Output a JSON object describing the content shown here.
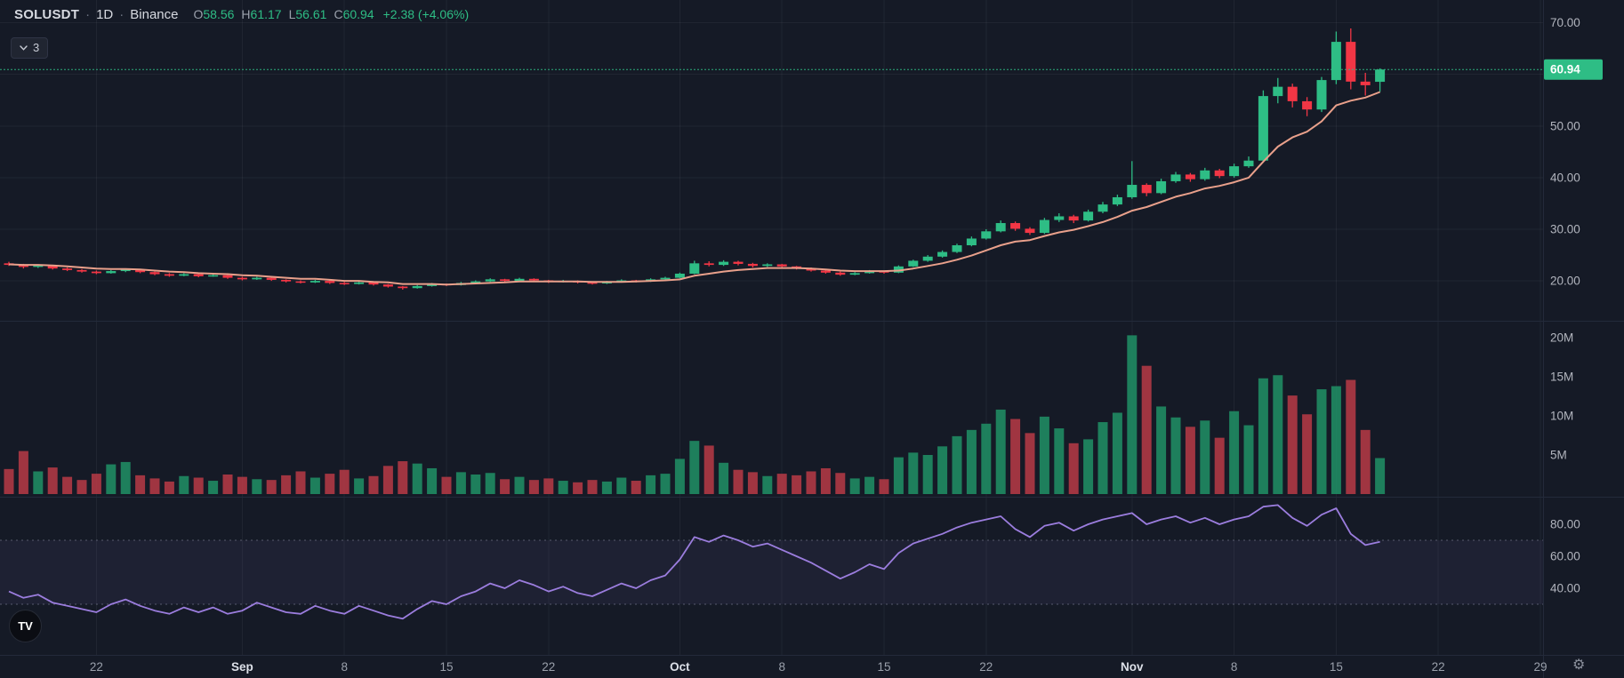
{
  "header": {
    "symbol": "SOLUSDT",
    "sep1": "·",
    "interval": "1D",
    "sep2": "·",
    "exchange": "Binance",
    "ohlc": {
      "o_label": "O",
      "o": "58.56",
      "h_label": "H",
      "h": "61.17",
      "l_label": "L",
      "l": "56.61",
      "c_label": "C",
      "c": "60.94",
      "change": "+2.38 (+4.06%)"
    },
    "indicator_badge": {
      "count": "3"
    }
  },
  "footer": {
    "logo_text": "TV",
    "gear_icon": "⚙"
  },
  "colors": {
    "bg": "#151a26",
    "up": "#2ebd85",
    "down": "#f23645",
    "vol_up": "#209266",
    "vol_down": "#b83b46",
    "ma": "#e9a08b",
    "rsi_line": "#9b7dde",
    "rsi_band": "rgba(155,125,222,0.07)",
    "band_line": "rgba(139,144,162,0.55)",
    "grid": "rgba(255,255,255,0.05)",
    "separator": "#232a3a",
    "axis_text": "#b2b5be",
    "text1": "#d6d9e0",
    "muted": "#9aa0ab",
    "badge_bg": "#2ebd85",
    "badge_text": "#ffffff",
    "price_line": "#2ebd85",
    "tick_minor": "#9aa0ab",
    "tick_major": "#dce0e8"
  },
  "price_axis": {
    "labels": [
      {
        "text": "70.00",
        "price": 70
      },
      {
        "text": "50.00",
        "price": 50
      },
      {
        "text": "40.00",
        "price": 40
      },
      {
        "text": "30.00",
        "price": 30
      },
      {
        "text": "20.00",
        "price": 20
      }
    ],
    "grid_prices": [
      20,
      30,
      40,
      50,
      60,
      70
    ],
    "last": {
      "text": "60.94",
      "price": 60.94
    }
  },
  "volume_axis": {
    "labels": [
      {
        "text": "20M",
        "value": 20
      },
      {
        "text": "15M",
        "value": 15
      },
      {
        "text": "10M",
        "value": 10
      },
      {
        "text": "5M",
        "value": 5
      }
    ]
  },
  "rsi_axis": {
    "labels": [
      {
        "text": "80.00",
        "value": 80
      },
      {
        "text": "60.00",
        "value": 60
      },
      {
        "text": "40.00",
        "value": 40
      }
    ],
    "bands": [
      70,
      30
    ]
  },
  "time_axis": {
    "ticks": [
      {
        "text": "22",
        "i": 6,
        "major": false
      },
      {
        "text": "Sep",
        "i": 16,
        "major": true
      },
      {
        "text": "8",
        "i": 23,
        "major": false
      },
      {
        "text": "15",
        "i": 30,
        "major": false
      },
      {
        "text": "22",
        "i": 37,
        "major": false
      },
      {
        "text": "Oct",
        "i": 46,
        "major": true
      },
      {
        "text": "8",
        "i": 53,
        "major": false
      },
      {
        "text": "15",
        "i": 60,
        "major": false
      },
      {
        "text": "22",
        "i": 67,
        "major": false
      },
      {
        "text": "Nov",
        "i": 77,
        "major": true
      },
      {
        "text": "8",
        "i": 84,
        "major": false
      },
      {
        "text": "15",
        "i": 91,
        "major": false
      },
      {
        "text": "22",
        "i": 98,
        "major": false
      },
      {
        "text": "29",
        "i": 105,
        "major": false
      }
    ]
  },
  "chart_data": {
    "type": "candlestick",
    "symbol": "SOLUSDT",
    "interval": "1D",
    "exchange": "Binance",
    "panes": [
      "price+ma",
      "volume",
      "rsi"
    ],
    "last_price": 60.94,
    "price_ylim": [
      12.3,
      74.4
    ],
    "volume_ylim_millions": [
      0,
      22
    ],
    "rsi_ylim": [
      0,
      97
    ],
    "rsi_bands": [
      70,
      30
    ],
    "open": [
      23.4,
      23.1,
      22.7,
      23.0,
      22.4,
      22.1,
      21.8,
      21.5,
      21.9,
      22.2,
      21.7,
      21.3,
      21.0,
      21.3,
      20.9,
      21.1,
      20.6,
      20.3,
      20.6,
      20.2,
      19.9,
      19.7,
      20.0,
      19.6,
      19.4,
      19.7,
      19.3,
      18.9,
      18.6,
      19.0,
      19.4,
      19.2,
      19.6,
      19.9,
      20.3,
      20.0,
      20.4,
      20.1,
      19.8,
      20.0,
      19.7,
      19.5,
      19.8,
      20.1,
      19.9,
      20.3,
      20.6,
      21.4,
      23.4,
      23.1,
      23.7,
      23.3,
      22.9,
      23.2,
      22.8,
      22.4,
      22.0,
      21.6,
      21.2,
      21.5,
      21.9,
      21.6,
      22.8,
      23.9,
      24.7,
      25.6,
      26.9,
      28.2,
      29.6,
      31.2,
      30.1,
      29.3,
      31.8,
      32.5,
      31.7,
      33.4,
      34.8,
      36.2,
      38.6,
      37.0,
      39.3,
      40.6,
      39.7,
      41.4,
      40.3,
      42.2,
      43.3,
      55.8,
      57.6,
      54.8,
      53.2,
      58.9,
      66.3,
      58.6,
      58.56
    ],
    "high": [
      23.7,
      23.3,
      23.2,
      23.1,
      22.6,
      22.3,
      22.0,
      22.1,
      22.4,
      22.3,
      21.8,
      21.5,
      21.5,
      21.4,
      21.3,
      21.2,
      20.8,
      20.8,
      20.7,
      20.3,
      20.1,
      20.2,
      20.1,
      19.8,
      19.9,
      19.8,
      19.4,
      19.0,
      19.2,
      19.6,
      19.5,
      19.8,
      20.1,
      20.5,
      20.4,
      20.6,
      20.5,
      20.2,
      20.2,
      20.1,
      19.8,
      20.0,
      20.3,
      20.2,
      20.5,
      20.8,
      21.6,
      23.9,
      23.8,
      24.0,
      23.9,
      23.5,
      23.4,
      23.3,
      22.9,
      22.6,
      22.1,
      21.8,
      21.7,
      22.1,
      22.0,
      23.0,
      24.1,
      25.0,
      25.9,
      27.2,
      28.6,
      30.0,
      31.7,
      31.5,
      30.4,
      32.2,
      33.1,
      32.8,
      33.8,
      35.3,
      36.7,
      43.2,
      38.9,
      39.8,
      41.1,
      40.9,
      41.9,
      41.7,
      42.7,
      44.1,
      56.9,
      59.3,
      58.2,
      55.6,
      59.5,
      68.3,
      68.9,
      60.3,
      61.17
    ],
    "low": [
      22.9,
      22.4,
      22.5,
      22.2,
      21.9,
      21.6,
      21.3,
      21.4,
      21.7,
      21.5,
      21.1,
      20.8,
      20.9,
      20.7,
      20.8,
      20.4,
      20.1,
      20.2,
      20.0,
      19.7,
      19.5,
      19.6,
      19.4,
      19.2,
      19.3,
      19.1,
      18.7,
      18.3,
      18.5,
      18.9,
      19.0,
      19.1,
      19.5,
      19.8,
      19.8,
      19.9,
      19.9,
      19.6,
      19.7,
      19.5,
      19.3,
      19.4,
      19.7,
      19.7,
      19.8,
      20.2,
      20.5,
      21.3,
      22.8,
      22.9,
      23.0,
      22.6,
      22.7,
      22.5,
      22.2,
      21.8,
      21.4,
      21.0,
      21.1,
      21.4,
      21.4,
      21.5,
      22.7,
      23.7,
      24.5,
      25.4,
      26.7,
      28.0,
      29.4,
      29.7,
      28.9,
      29.1,
      31.4,
      31.2,
      31.5,
      33.1,
      34.5,
      35.9,
      36.4,
      36.8,
      39.0,
      39.2,
      39.4,
      39.9,
      40.0,
      41.9,
      42.9,
      54.4,
      53.6,
      51.9,
      52.7,
      58.1,
      57.1,
      55.9,
      56.61
    ],
    "close": [
      23.1,
      22.7,
      23.0,
      22.4,
      22.1,
      21.8,
      21.5,
      21.9,
      22.2,
      21.7,
      21.3,
      21.0,
      21.3,
      20.9,
      21.1,
      20.6,
      20.3,
      20.6,
      20.2,
      19.9,
      19.7,
      20.0,
      19.6,
      19.4,
      19.7,
      19.3,
      18.9,
      18.6,
      19.0,
      19.4,
      19.2,
      19.6,
      19.9,
      20.3,
      20.0,
      20.4,
      20.1,
      19.8,
      20.0,
      19.7,
      19.5,
      19.8,
      20.1,
      19.9,
      20.3,
      20.6,
      21.4,
      23.4,
      23.1,
      23.7,
      23.3,
      22.9,
      23.2,
      22.8,
      22.4,
      22.0,
      21.6,
      21.2,
      21.5,
      21.9,
      21.6,
      22.8,
      23.9,
      24.7,
      25.6,
      26.9,
      28.2,
      29.6,
      31.2,
      30.1,
      29.3,
      31.8,
      32.5,
      31.7,
      33.4,
      34.8,
      36.2,
      38.6,
      37.0,
      39.3,
      40.6,
      39.7,
      41.4,
      40.3,
      42.2,
      43.3,
      55.8,
      57.6,
      54.8,
      53.2,
      58.9,
      66.3,
      58.6,
      57.9,
      60.94
    ],
    "volume_millions": [
      3.2,
      5.5,
      2.9,
      3.4,
      2.2,
      1.8,
      2.6,
      3.8,
      4.1,
      2.4,
      2.0,
      1.6,
      2.3,
      2.1,
      1.7,
      2.5,
      2.2,
      1.9,
      1.8,
      2.4,
      2.9,
      2.1,
      2.6,
      3.1,
      2.0,
      2.3,
      3.6,
      4.2,
      3.9,
      3.3,
      2.2,
      2.8,
      2.5,
      2.7,
      1.9,
      2.2,
      1.8,
      2.0,
      1.7,
      1.5,
      1.8,
      1.6,
      2.1,
      1.7,
      2.4,
      2.6,
      4.5,
      6.8,
      6.2,
      4.0,
      3.1,
      2.8,
      2.3,
      2.6,
      2.4,
      2.9,
      3.3,
      2.7,
      2.0,
      2.2,
      1.9,
      4.7,
      5.3,
      5.0,
      6.1,
      7.4,
      8.2,
      9.0,
      10.8,
      9.6,
      7.8,
      9.9,
      8.4,
      6.5,
      7.0,
      9.2,
      10.4,
      20.3,
      16.4,
      11.2,
      9.8,
      8.6,
      9.4,
      7.2,
      10.6,
      8.8,
      14.8,
      15.2,
      12.6,
      10.2,
      13.4,
      13.8,
      14.6,
      8.2,
      4.6
    ],
    "ma": [
      23.2,
      23.1,
      23.1,
      23.0,
      22.8,
      22.6,
      22.4,
      22.3,
      22.3,
      22.2,
      22.0,
      21.8,
      21.7,
      21.5,
      21.4,
      21.3,
      21.1,
      21.0,
      20.8,
      20.6,
      20.4,
      20.4,
      20.2,
      20.0,
      20.0,
      19.8,
      19.7,
      19.4,
      19.4,
      19.4,
      19.3,
      19.4,
      19.5,
      19.6,
      19.7,
      19.9,
      19.9,
      19.9,
      19.9,
      19.9,
      19.8,
      19.8,
      19.8,
      19.9,
      20.0,
      20.1,
      20.3,
      21.0,
      21.4,
      21.8,
      22.1,
      22.3,
      22.5,
      22.5,
      22.5,
      22.4,
      22.2,
      22.0,
      21.9,
      21.9,
      21.9,
      22.0,
      22.4,
      22.9,
      23.4,
      24.1,
      24.9,
      25.9,
      26.9,
      27.6,
      27.9,
      28.7,
      29.4,
      29.9,
      30.6,
      31.4,
      32.4,
      33.6,
      34.3,
      35.3,
      36.3,
      37.0,
      37.9,
      38.4,
      39.1,
      40.0,
      43.1,
      46.0,
      47.8,
      48.9,
      50.9,
      54.0,
      54.9,
      55.5,
      56.6
    ],
    "rsi": [
      38,
      34,
      36,
      31,
      29,
      27,
      25,
      30,
      33,
      29,
      26,
      24,
      28,
      25,
      28,
      24,
      26,
      31,
      28,
      25,
      24,
      29,
      26,
      24,
      29,
      26,
      23,
      21,
      27,
      32,
      30,
      35,
      38,
      43,
      40,
      45,
      42,
      38,
      41,
      37,
      35,
      39,
      43,
      40,
      45,
      48,
      58,
      72,
      69,
      73,
      70,
      66,
      68,
      64,
      60,
      56,
      51,
      46,
      50,
      55,
      52,
      62,
      68,
      71,
      74,
      78,
      81,
      83,
      85,
      77,
      72,
      79,
      81,
      76,
      80,
      83,
      85,
      87,
      80,
      83,
      85,
      81,
      84,
      80,
      83,
      85,
      91,
      92,
      84,
      79,
      86,
      90,
      74,
      67,
      69
    ]
  }
}
